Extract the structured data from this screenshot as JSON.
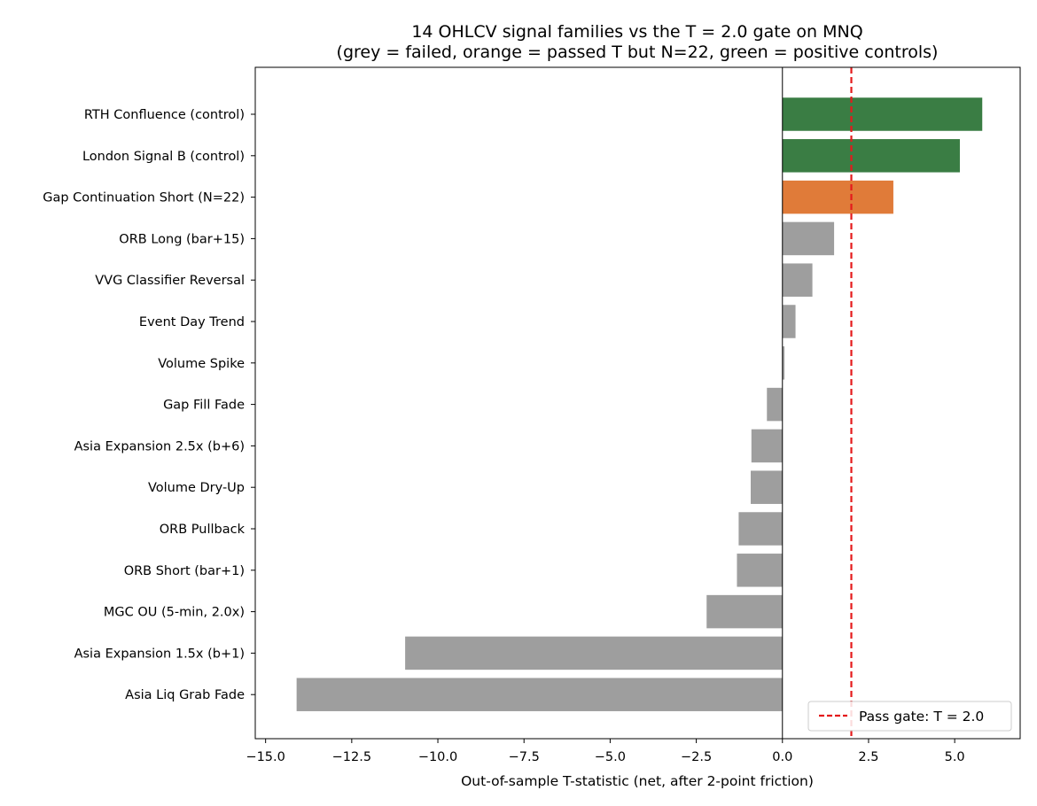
{
  "chart_data": {
    "type": "bar",
    "orientation": "horizontal",
    "title": "14 OHLCV signal families vs the T = 2.0 gate on MNQ",
    "subtitle": "(grey = failed, orange = passed T but N=22, green = positive controls)",
    "xlabel": "Out-of-sample T-statistic (net, after 2-point friction)",
    "ylabel": "",
    "xlim": [
      -15.3,
      6.9
    ],
    "xticks": [
      -15.0,
      -12.5,
      -10.0,
      -7.5,
      -5.0,
      -2.5,
      0.0,
      2.5,
      5.0
    ],
    "xtick_labels": [
      "−15.0",
      "−12.5",
      "−10.0",
      "−7.5",
      "−5.0",
      "−2.5",
      "0.0",
      "2.5",
      "5.0"
    ],
    "grid": false,
    "legend_position": "lower-right",
    "categories": [
      "RTH Confluence (control)",
      "London Signal B (control)",
      "Gap Continuation Short (N=22)",
      "ORB Long (bar+15)",
      "VVG Classifier Reversal",
      "Event Day Trend",
      "Volume Spike",
      "Gap Fill Fade",
      "Asia Expansion 2.5x (b+6)",
      "Volume Dry-Up",
      "ORB Pullback",
      "ORB Short (bar+1)",
      "MGC OU (5-min, 2.0x)",
      "Asia Expansion 1.5x (b+1)",
      "Asia Liq Grab Fade"
    ],
    "values": [
      5.8,
      5.15,
      3.22,
      1.5,
      0.87,
      0.38,
      0.06,
      -0.45,
      -0.9,
      -0.92,
      -1.27,
      -1.32,
      -2.2,
      -10.95,
      -14.1
    ],
    "bar_status": [
      "control",
      "control",
      "passed",
      "failed",
      "failed",
      "failed",
      "failed",
      "failed",
      "failed",
      "failed",
      "failed",
      "failed",
      "failed",
      "failed",
      "failed"
    ],
    "colors": {
      "failed": "#9e9e9e",
      "passed": "#e07b39",
      "control": "#3a7d44",
      "gate_line": "#e41a1c",
      "zero_line": "#000000"
    },
    "gate": {
      "value": 2.0,
      "label": "Pass gate: T = 2.0"
    }
  }
}
